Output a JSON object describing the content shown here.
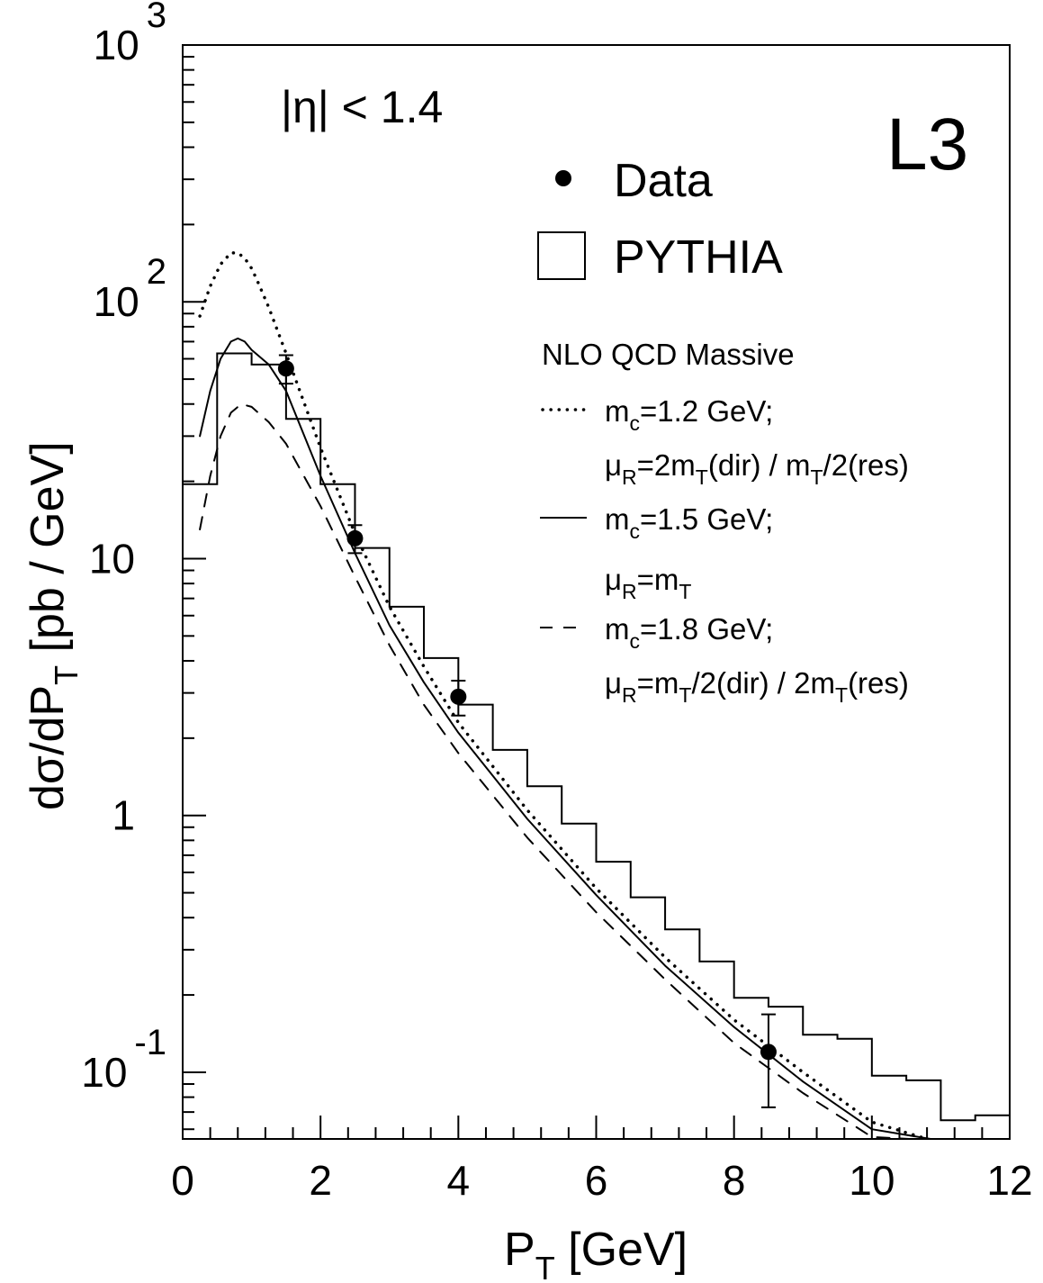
{
  "chart_data": {
    "type": "line",
    "title": "",
    "xlabel": {
      "base": "P",
      "sub": "T",
      "rest": " [GeV]"
    },
    "ylabel": {
      "pre": "dσ/dP",
      "sub": "T",
      "post": " [pb / GeV]"
    },
    "xlim": [
      0,
      12
    ],
    "ylim": [
      0.055,
      1000
    ],
    "yscale": "log",
    "x_ticks": [
      0,
      2,
      4,
      6,
      8,
      10,
      12
    ],
    "x_tick_labels": [
      "0",
      "2",
      "4",
      "6",
      "8",
      "10",
      "12"
    ],
    "y_ticks": [
      {
        "value": 1000,
        "base": "10",
        "exp": "3"
      },
      {
        "value": 100,
        "base": "10",
        "exp": "2"
      },
      {
        "value": 10,
        "base": "10",
        "exp": ""
      },
      {
        "value": 1,
        "base": "1",
        "exp": ""
      },
      {
        "value": 0.1,
        "base": "10",
        "exp": "-1"
      }
    ],
    "grid": false,
    "experiment_label": "L3",
    "region_label": "|η| < 1.4",
    "legend": {
      "placement": "top-right",
      "data_label": "Data",
      "pythia_label": "PYTHIA",
      "nlo_title": "NLO QCD Massive",
      "entries": [
        {
          "style": "dotted",
          "line1": {
            "pre": "m",
            "sub": "c",
            "post": "=1.2 GeV;"
          },
          "line2": "μR=2mT(dir) / mT/2(res)"
        },
        {
          "style": "solid",
          "line1": {
            "pre": "m",
            "sub": "c",
            "post": "=1.5 GeV;"
          },
          "line2": "μR=mT"
        },
        {
          "style": "dashed",
          "line1": {
            "pre": "m",
            "sub": "c",
            "post": "=1.8 GeV;"
          },
          "line2": "μR=mT/2(dir) / 2mT(res)"
        }
      ]
    },
    "series": [
      {
        "name": "Data",
        "kind": "points",
        "points": [
          {
            "x": 1.5,
            "y": 55,
            "yerr_up": 62,
            "yerr_low": 48,
            "xerr": 0.1
          },
          {
            "x": 2.5,
            "y": 12,
            "yerr_up": 13.5,
            "yerr_low": 10.5,
            "xerr": 0.1
          },
          {
            "x": 4.0,
            "y": 2.9,
            "yerr_up": 3.35,
            "yerr_low": 2.45,
            "xerr": 0.1
          },
          {
            "x": 8.5,
            "y": 0.12,
            "yerr_up": 0.168,
            "yerr_low": 0.073,
            "xerr": 0.1
          }
        ]
      },
      {
        "name": "PYTHIA",
        "kind": "histogram",
        "bin_edges": [
          0,
          0.5,
          1,
          1.5,
          2,
          2.5,
          3,
          3.5,
          4,
          4.5,
          5,
          5.5,
          6,
          6.5,
          7,
          7.5,
          8,
          8.5,
          9,
          9.5,
          10,
          10.5,
          11,
          11.5,
          12
        ],
        "values": [
          19.5,
          63,
          57,
          35,
          19.5,
          11,
          6.5,
          4.1,
          2.7,
          1.8,
          1.3,
          0.93,
          0.66,
          0.48,
          0.36,
          0.27,
          0.195,
          0.18,
          0.14,
          0.135,
          0.097,
          0.093,
          0.065,
          0.068
        ]
      },
      {
        "name": "m_c=1.2 GeV",
        "kind": "curve",
        "style": "dotted",
        "x": [
          0.25,
          0.4,
          0.55,
          0.7,
          0.8,
          0.9,
          1.0,
          1.1,
          1.25,
          1.5,
          2.0,
          2.5,
          3.0,
          3.5,
          4.0,
          5.0,
          6.0,
          7.0,
          8.0,
          9.0,
          10.0,
          10.8
        ],
        "y": [
          88,
          115,
          140,
          155,
          155,
          148,
          135,
          118,
          95,
          63,
          27,
          12.5,
          6.5,
          3.8,
          2.3,
          1.05,
          0.52,
          0.28,
          0.16,
          0.1,
          0.064,
          0.048
        ]
      },
      {
        "name": "m_c=1.5 GeV",
        "kind": "curve",
        "style": "solid",
        "x": [
          0.25,
          0.4,
          0.55,
          0.7,
          0.8,
          0.9,
          1.0,
          1.25,
          1.5,
          2.0,
          2.5,
          3.0,
          3.5,
          4.0,
          5.0,
          6.0,
          7.0,
          8.0,
          9.0,
          10.0,
          10.85
        ],
        "y": [
          30,
          45,
          60,
          70,
          72,
          70,
          65,
          57,
          45,
          21,
          10.5,
          5.5,
          3.3,
          2.1,
          0.97,
          0.49,
          0.26,
          0.15,
          0.092,
          0.06,
          0.045
        ]
      },
      {
        "name": "m_c=1.8 GeV",
        "kind": "curve",
        "style": "dashed",
        "x": [
          0.25,
          0.4,
          0.55,
          0.7,
          0.85,
          1.0,
          1.25,
          1.5,
          2.0,
          2.5,
          3.0,
          3.5,
          4.0,
          5.0,
          6.0,
          7.0,
          8.0,
          9.0,
          10.0,
          10.55
        ],
        "y": [
          13,
          21,
          30,
          37,
          40,
          39,
          34,
          28,
          16,
          8.5,
          4.6,
          2.7,
          1.75,
          0.82,
          0.42,
          0.23,
          0.13,
          0.083,
          0.056,
          0.047
        ]
      }
    ]
  }
}
